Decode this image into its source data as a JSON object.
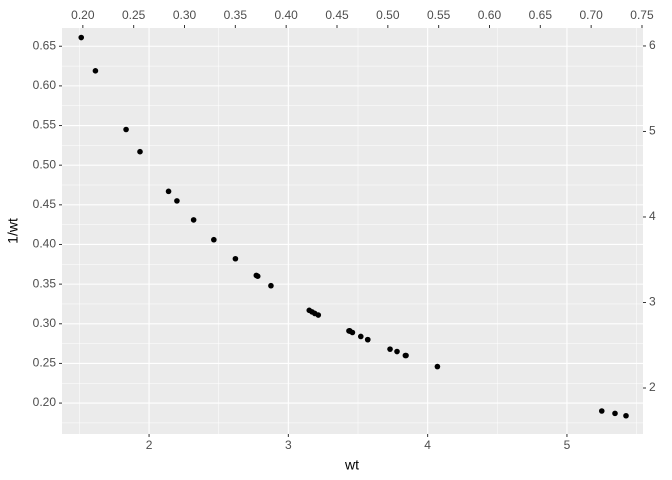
{
  "chart_data": {
    "type": "scatter",
    "x_label": "wt",
    "y_label": "1/wt",
    "color": "#000000",
    "grid": true,
    "x": [
      2.62,
      2.875,
      2.32,
      3.215,
      3.44,
      3.46,
      3.57,
      3.19,
      3.15,
      3.44,
      3.44,
      4.07,
      3.73,
      3.78,
      5.25,
      5.424,
      5.345,
      2.2,
      1.615,
      1.835,
      2.465,
      3.52,
      3.435,
      3.84,
      3.845,
      1.935,
      2.14,
      1.513,
      3.17,
      2.77,
      3.57,
      2.78
    ],
    "series": [
      {
        "values": [
          0.382,
          0.348,
          0.431,
          0.311,
          0.291,
          0.289,
          0.28,
          0.313,
          0.317,
          0.291,
          0.291,
          0.246,
          0.268,
          0.265,
          0.19,
          0.184,
          0.187,
          0.455,
          0.619,
          0.545,
          0.406,
          0.284,
          0.291,
          0.26,
          0.26,
          0.517,
          0.467,
          0.661,
          0.315,
          0.361,
          0.28,
          0.36
        ]
      }
    ],
    "xlim": [
      1.375,
      5.546
    ],
    "xticks": [
      2,
      3,
      4,
      5
    ],
    "ylim": [
      0.161,
      0.673
    ],
    "yticks": [
      {
        "value": 0.2,
        "label": "0.20"
      },
      0.25,
      {
        "value": 0.3,
        "label": "0.30"
      },
      0.35,
      {
        "value": 0.4,
        "label": "0.40"
      },
      0.45,
      {
        "value": 0.5,
        "label": "0.50"
      },
      0.55,
      {
        "value": 0.6,
        "label": "0.60"
      },
      0.65
    ],
    "x2lim": [
      0.1795,
      0.751
    ],
    "x2ticks": [
      {
        "value": 0.2,
        "label": "0.20"
      },
      0.25,
      {
        "value": 0.3,
        "label": "0.30"
      },
      0.35,
      {
        "value": 0.4,
        "label": "0.40"
      },
      0.45,
      {
        "value": 0.5,
        "label": "0.50"
      },
      0.55,
      {
        "value": 0.6,
        "label": "0.60"
      },
      0.65,
      {
        "value": 0.7,
        "label": "0.70"
      },
      0.75
    ],
    "y2lim": [
      1.462,
      6.21
    ],
    "y2ticks": [
      2,
      3,
      4,
      5,
      6
    ]
  }
}
